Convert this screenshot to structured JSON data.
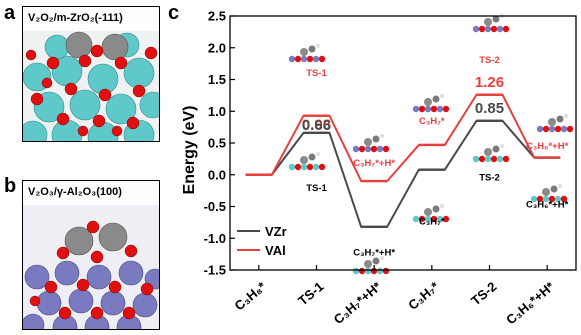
{
  "panels": {
    "a": {
      "letter": "a",
      "label": "V₂O₂/m-ZrO₂(-111)"
    },
    "b": {
      "letter": "b",
      "label": "V₂O₃/γ-Al₂O₃(100)"
    },
    "c": {
      "letter": "c"
    }
  },
  "chart_data": {
    "type": "line",
    "style": "energy-profile",
    "ylabel": "Energy (eV)",
    "ylim": [
      -1.5,
      2.5
    ],
    "yticks": [
      "-1.5",
      "-1.0",
      "-0.5",
      "0.0",
      "0.5",
      "1.0",
      "1.5",
      "2.0",
      "2.5"
    ],
    "categories": [
      "C₃H₈*",
      "TS-1",
      "C₃H₇*+H*",
      "C₃H₇*",
      "TS-2",
      "C₃H₆*+H*"
    ],
    "series": [
      {
        "name": "VZr",
        "color": "#4a4a4a",
        "values": [
          0.0,
          0.66,
          -0.82,
          0.08,
          0.85,
          0.27
        ]
      },
      {
        "name": "VAl",
        "color": "#e8403f",
        "values": [
          0.0,
          0.93,
          -0.1,
          0.47,
          1.26,
          0.27
        ]
      }
    ],
    "data_labels": [
      {
        "text": "0.93",
        "color": "#e8403f",
        "x": 1,
        "y": 0.93,
        "dy": -0.14
      },
      {
        "text": "0.66",
        "color": "#4a4a4a",
        "x": 1,
        "y": 0.66,
        "dy": 0.12
      },
      {
        "text": "1.26",
        "color": "#e8403f",
        "x": 4,
        "y": 1.26,
        "dy": 0.2
      },
      {
        "text": "0.85",
        "color": "#4a4a4a",
        "x": 4,
        "y": 0.85,
        "dy": 0.2
      }
    ],
    "annotations": [
      {
        "text": "TS-1",
        "color": "#e8403f",
        "x": 1,
        "y": 1.62
      },
      {
        "text": "TS-1",
        "color": "#000000",
        "x": 1,
        "y": -0.19
      },
      {
        "text": "C₃H₇*+H*",
        "color": "#e8403f",
        "x": 2,
        "y": 0.2
      },
      {
        "text": "C₃H₇*+H*",
        "color": "#000000",
        "x": 2,
        "y": -1.21
      },
      {
        "text": "C₃H₇*",
        "color": "#e8403f",
        "x": 3,
        "y": 0.86
      },
      {
        "text": "C₃H₇*",
        "color": "#000000",
        "x": 3,
        "y": -0.72
      },
      {
        "text": "TS-2",
        "color": "#e8403f",
        "x": 4,
        "y": 1.82
      },
      {
        "text": "TS-2",
        "color": "#000000",
        "x": 4,
        "y": -0.03
      },
      {
        "text": "C₃H₆*+H*",
        "color": "#e8403f",
        "x": 5,
        "y": 0.47
      },
      {
        "text": "C₃H₆*+H*",
        "color": "#000000",
        "x": 5,
        "y": -0.45
      }
    ],
    "legend_position": "bottom-left"
  }
}
